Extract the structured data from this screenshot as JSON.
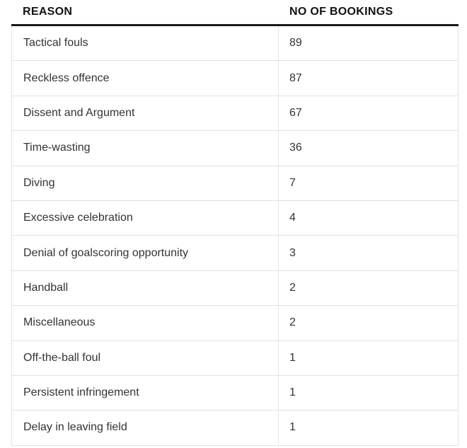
{
  "chart_data": {
    "type": "table",
    "title": "",
    "columns": [
      "REASON",
      "NO OF BOOKINGS"
    ],
    "rows": [
      {
        "reason": "Tactical fouls",
        "bookings": 89
      },
      {
        "reason": "Reckless offence",
        "bookings": 87
      },
      {
        "reason": "Dissent and Argument",
        "bookings": 67
      },
      {
        "reason": "Time-wasting",
        "bookings": 36
      },
      {
        "reason": "Diving",
        "bookings": 7
      },
      {
        "reason": "Excessive celebration",
        "bookings": 4
      },
      {
        "reason": "Denial of goalscoring opportunity",
        "bookings": 3
      },
      {
        "reason": "Handball",
        "bookings": 2
      },
      {
        "reason": "Miscellaneous",
        "bookings": 2
      },
      {
        "reason": "Off-the-ball foul",
        "bookings": 1
      },
      {
        "reason": "Persistent infringement",
        "bookings": 1
      },
      {
        "reason": "Delay in leaving field",
        "bookings": 1
      }
    ]
  },
  "colors": {
    "background": "#ffffff",
    "header_text": "#121212",
    "header_rule": "#1a1a1a",
    "row_separator": "#e2e2e2",
    "column_divider": "#e7e7e7",
    "body_text": "#333333"
  }
}
